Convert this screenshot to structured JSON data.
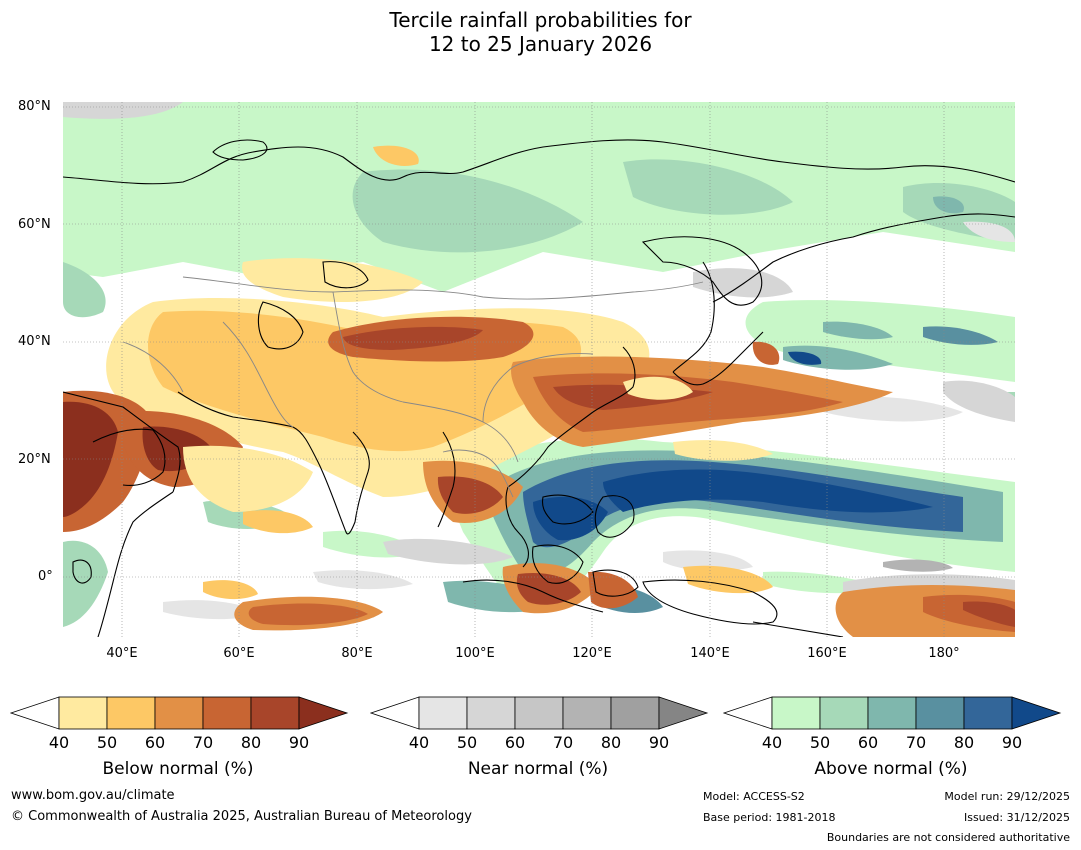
{
  "title_line1": "Tercile rainfall probabilities for",
  "title_line2": "12 to 25 January 2026",
  "lat_labels": [
    "80°N",
    "60°N",
    "40°N",
    "20°N",
    "0°"
  ],
  "lon_labels": [
    "40°E",
    "60°E",
    "80°E",
    "100°E",
    "120°E",
    "140°E",
    "160°E",
    "180°"
  ],
  "legends": {
    "below": {
      "title": "Below normal (%)",
      "ticks": [
        "40",
        "50",
        "60",
        "70",
        "80",
        "90"
      ],
      "colors": [
        "#ffeaa0",
        "#fdc865",
        "#e29046",
        "#c86533",
        "#a8452a",
        "#8b2f1e"
      ]
    },
    "near": {
      "title": "Near normal (%)",
      "ticks": [
        "40",
        "50",
        "60",
        "70",
        "80",
        "90"
      ],
      "colors": [
        "#e5e5e5",
        "#d6d6d6",
        "#c6c6c6",
        "#b3b3b3",
        "#a0a0a0",
        "#858585"
      ]
    },
    "above": {
      "title": "Above normal (%)",
      "ticks": [
        "40",
        "50",
        "60",
        "70",
        "80",
        "90"
      ],
      "colors": [
        "#c8f7c8",
        "#a6d9b8",
        "#7fb7ad",
        "#5990a0",
        "#336699",
        "#11498a"
      ]
    }
  },
  "footer": {
    "website": "www.bom.gov.au/climate",
    "copyright": "© Commonwealth of Australia 2025, Australian Bureau of Meteorology",
    "model": "Model: ACCESS-S2",
    "base_period": "Base period: 1981-2018",
    "model_run": "Model run: 29/12/2025",
    "issued": "Issued: 31/12/2025",
    "disclaimer": "Boundaries are not considered authoritative"
  }
}
